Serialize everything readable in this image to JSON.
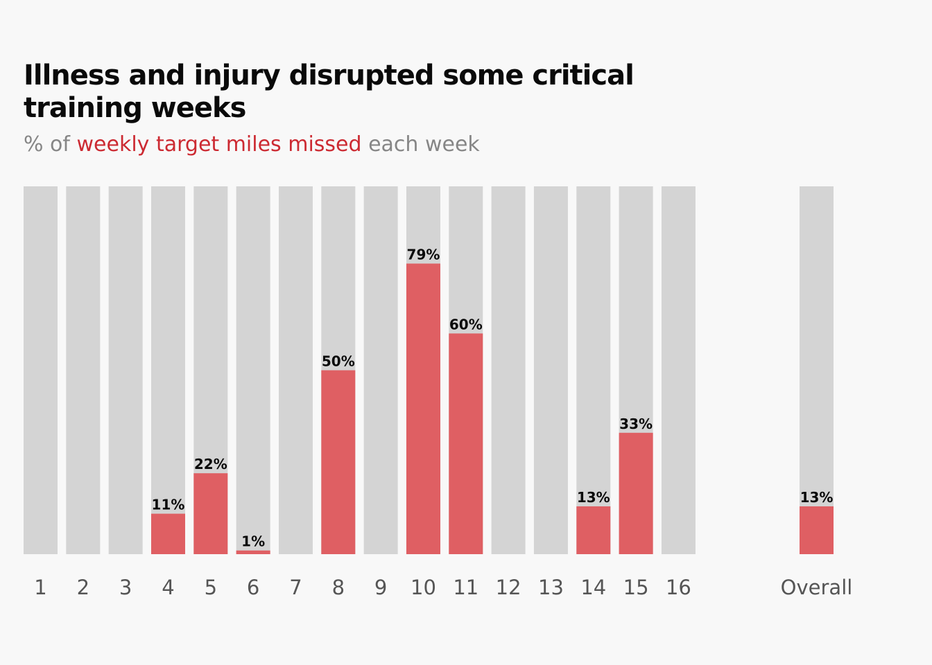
{
  "chart_data": {
    "type": "bar",
    "title": "Illness and injury disrupted some critical training weeks",
    "subtitle": {
      "prefix": "% of ",
      "highlight": "weekly target miles missed",
      "suffix": " each week"
    },
    "categories": [
      "1",
      "2",
      "3",
      "4",
      "5",
      "6",
      "7",
      "8",
      "9",
      "10",
      "11",
      "12",
      "13",
      "14",
      "15",
      "16",
      "Overall"
    ],
    "values": [
      0,
      0,
      0,
      11,
      22,
      1,
      0,
      50,
      0,
      79,
      60,
      0,
      0,
      13,
      33,
      0,
      13
    ],
    "data_labels": [
      "",
      "",
      "",
      "11%",
      "22%",
      "1%",
      "",
      "50%",
      "",
      "79%",
      "60%",
      "",
      "",
      "13%",
      "33%",
      "",
      "13%"
    ],
    "ylim": [
      0,
      100
    ],
    "xlabel": "",
    "ylabel": "",
    "grid": false,
    "legend": "none",
    "colors": {
      "background_bar": "#d4d4d4",
      "value_bar": "#df5f63",
      "highlight_text": "#cc2a32",
      "subtitle_text": "#868686",
      "label_text": "#0a0a0a",
      "category_text": "#555555"
    }
  }
}
